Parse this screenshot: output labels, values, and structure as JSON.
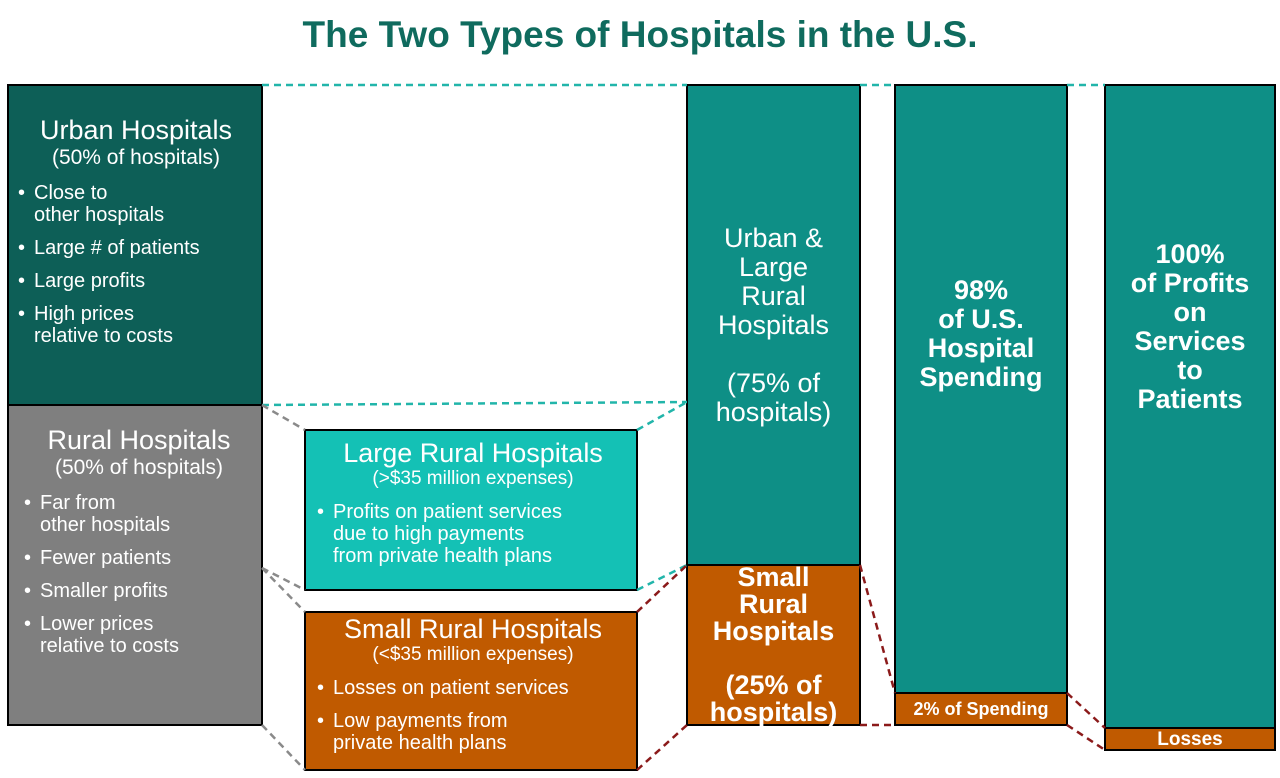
{
  "title": "The Two Types of Hospitals in the U.S.",
  "urban": {
    "heading": "Urban Hospitals",
    "subheading": "(50% of hospitals)",
    "bullets": [
      "Close to\nother hospitals",
      "Large # of patients",
      "Large profits",
      "High prices\nrelative to costs"
    ]
  },
  "rural": {
    "heading": "Rural Hospitals",
    "subheading": "(50% of hospitals)",
    "bullets": [
      "Far from\nother hospitals",
      "Fewer patients",
      "Smaller profits",
      "Lower prices\nrelative to costs"
    ]
  },
  "large_rural": {
    "heading": "Large Rural Hospitals",
    "subheading": "(>$35 million expenses)",
    "bullets": [
      "Profits on patient services\ndue to high payments\nfrom private health plans"
    ]
  },
  "small_rural": {
    "heading": "Small Rural Hospitals",
    "subheading": "(<$35 million expenses)",
    "bullets": [
      "Losses on patient services",
      "Low payments from\nprivate health plans"
    ]
  },
  "columns": [
    {
      "top": "Urban &\nLarge\nRural\nHospitals\n\n(75% of\nhospitals)",
      "bottom": "Small\nRural\nHospitals\n\n(25% of\nhospitals)"
    },
    {
      "top": "98%\nof U.S.\nHospital\nSpending",
      "bottom": "2% of Spending"
    },
    {
      "top": "100%\nof Profits\non\nServices\nto\nPatients",
      "bottom": "Losses"
    }
  ]
}
